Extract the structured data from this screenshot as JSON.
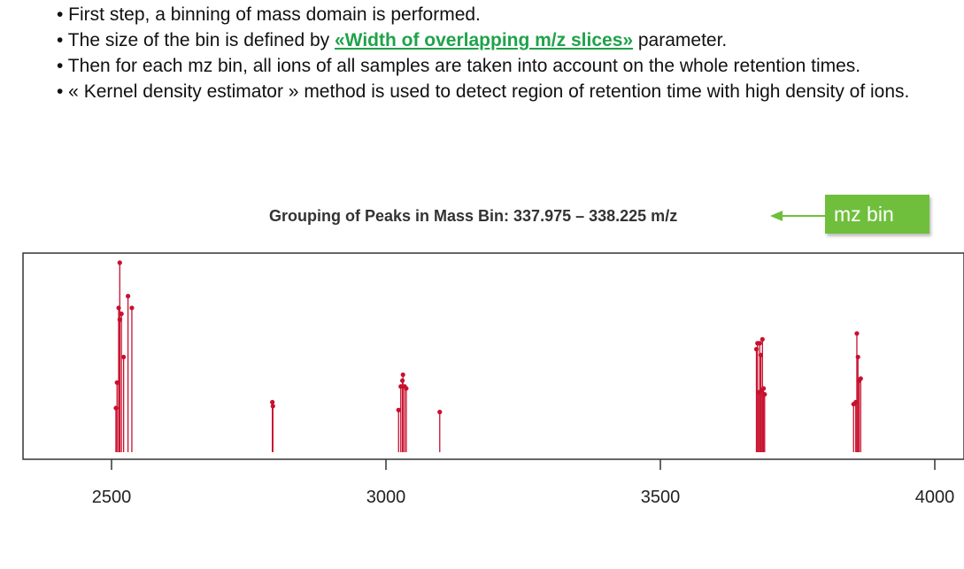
{
  "bullets": {
    "b1": "• First step, a binning of mass domain is performed.",
    "b2_pre": "• The size of the bin is defined by ",
    "b2_green": "«Width of overlapping m/z slices»",
    "b2_post": " parameter.",
    "b3": "• Then for each mz bin, all ions of all samples are taken into account on the whole retention times.",
    "b4": "• « Kernel density estimator » method is used to detect region of retention time with high density of ions."
  },
  "callout": {
    "label": "mz bin",
    "color": "#6fbf3c"
  },
  "chart_data": {
    "type": "scatter",
    "title": "Grouping of Peaks in Mass Bin: 337.975 – 338.225 m/z",
    "xlabel": "",
    "ylabel": "",
    "xlim": [
      2340,
      4005
    ],
    "ylim": [
      0,
      1
    ],
    "x_ticks": [
      2500,
      3000,
      3500,
      4000
    ],
    "tick_labels": [
      "2500",
      "3000",
      "3500",
      "4000"
    ],
    "color": "#c8102e",
    "grid": false,
    "points": [
      {
        "x": 2508,
        "y": 0.22
      },
      {
        "x": 2510,
        "y": 0.35
      },
      {
        "x": 2513,
        "y": 0.73
      },
      {
        "x": 2515,
        "y": 0.96
      },
      {
        "x": 2515,
        "y": 0.67
      },
      {
        "x": 2518,
        "y": 0.7
      },
      {
        "x": 2522,
        "y": 0.48
      },
      {
        "x": 2530,
        "y": 0.79
      },
      {
        "x": 2537,
        "y": 0.73
      },
      {
        "x": 2793,
        "y": 0.25
      },
      {
        "x": 2794,
        "y": 0.23
      },
      {
        "x": 3023,
        "y": 0.21
      },
      {
        "x": 3027,
        "y": 0.33
      },
      {
        "x": 3030,
        "y": 0.36
      },
      {
        "x": 3031,
        "y": 0.39
      },
      {
        "x": 3034,
        "y": 0.33
      },
      {
        "x": 3037,
        "y": 0.32
      },
      {
        "x": 3098,
        "y": 0.2
      },
      {
        "x": 3675,
        "y": 0.52
      },
      {
        "x": 3677,
        "y": 0.55
      },
      {
        "x": 3679,
        "y": 0.3
      },
      {
        "x": 3681,
        "y": 0.55
      },
      {
        "x": 3683,
        "y": 0.49
      },
      {
        "x": 3684,
        "y": 0.31
      },
      {
        "x": 3686,
        "y": 0.57
      },
      {
        "x": 3688,
        "y": 0.32
      },
      {
        "x": 3690,
        "y": 0.29
      },
      {
        "x": 3852,
        "y": 0.24
      },
      {
        "x": 3856,
        "y": 0.25
      },
      {
        "x": 3858,
        "y": 0.6
      },
      {
        "x": 3860,
        "y": 0.48
      },
      {
        "x": 3862,
        "y": 0.36
      },
      {
        "x": 3865,
        "y": 0.37
      }
    ]
  }
}
